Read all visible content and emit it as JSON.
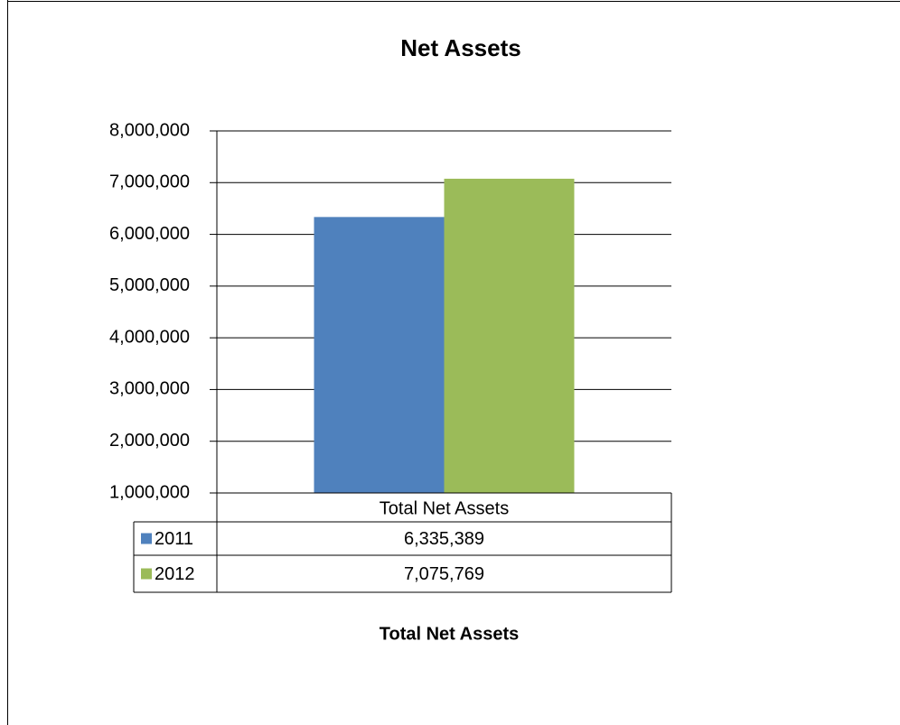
{
  "chart_data": {
    "type": "bar",
    "title": "Net Assets",
    "x_label": "Total Net Assets",
    "categories": [
      "Total Net Assets"
    ],
    "series": [
      {
        "name": "2011",
        "color": "#4f81bd",
        "values": [
          6335389
        ],
        "value_labels": [
          "6,335,389"
        ]
      },
      {
        "name": "2012",
        "color": "#9bbb59",
        "values": [
          7075769
        ],
        "value_labels": [
          "7,075,769"
        ]
      }
    ],
    "ylim": [
      1000000,
      8000000
    ],
    "yticks": [
      {
        "value": 1000000,
        "label": "1,000,000"
      },
      {
        "value": 2000000,
        "label": "2,000,000"
      },
      {
        "value": 3000000,
        "label": "3,000,000"
      },
      {
        "value": 4000000,
        "label": "4,000,000"
      },
      {
        "value": 5000000,
        "label": "5,000,000"
      },
      {
        "value": 6000000,
        "label": "6,000,000"
      },
      {
        "value": 7000000,
        "label": "7,000,000"
      },
      {
        "value": 8000000,
        "label": "8,000,000"
      }
    ],
    "grid": true
  }
}
